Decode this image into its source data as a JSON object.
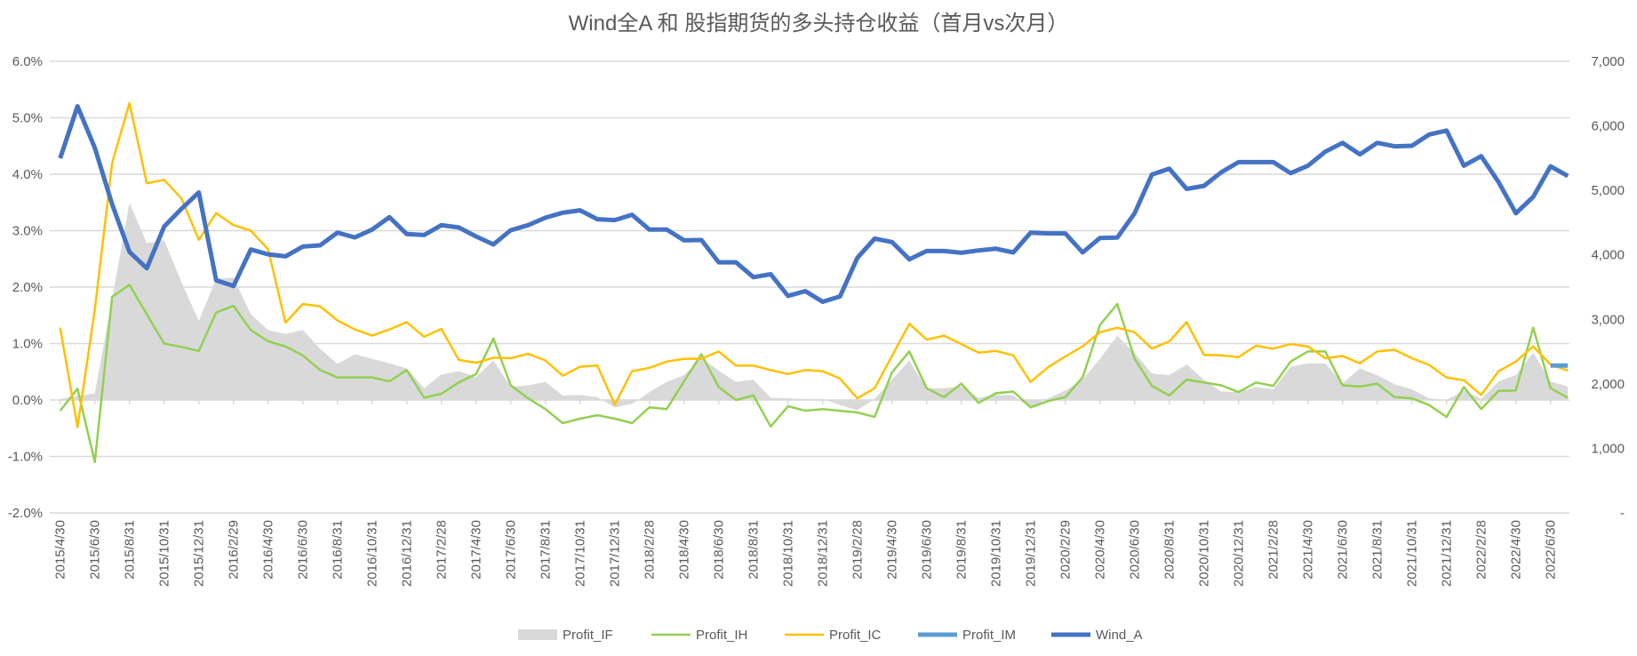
{
  "chart_data": {
    "type": "line",
    "title": "Wind全A 和 股指期货的多头持仓收益（首月vs次月）",
    "x_tick_labels": [
      "2015/4/30",
      "2015/6/30",
      "2015/8/31",
      "2015/10/31",
      "2015/12/31",
      "2016/2/29",
      "2016/4/30",
      "2016/6/30",
      "2016/8/31",
      "2016/10/31",
      "2016/12/31",
      "2017/2/28",
      "2017/4/30",
      "2017/6/30",
      "2017/8/31",
      "2017/10/31",
      "2017/12/31",
      "2018/2/28",
      "2018/4/30",
      "2018/6/30",
      "2018/8/31",
      "2018/10/31",
      "2018/12/31",
      "2019/2/28",
      "2019/4/30",
      "2019/6/30",
      "2019/8/31",
      "2019/10/31",
      "2019/12/31",
      "2020/2/29",
      "2020/4/30",
      "2020/6/30",
      "2020/8/31",
      "2020/10/31",
      "2020/12/31",
      "2021/2/28",
      "2021/4/30",
      "2021/6/30",
      "2021/8/31",
      "2021/10/31",
      "2021/12/31",
      "2022/2/28",
      "2022/4/30",
      "2022/6/30"
    ],
    "x_note": "monthly points from 2015/4/30 to 2022/7/31; tick labels every 2 months",
    "left_axis": {
      "unit": "percent",
      "ylim": [
        -2,
        6
      ],
      "tick_labels": [
        "-2.0%",
        "-1.0%",
        "0.0%",
        "1.0%",
        "2.0%",
        "3.0%",
        "4.0%",
        "5.0%",
        "6.0%"
      ]
    },
    "right_axis": {
      "ylim": [
        0,
        7000
      ],
      "tick_labels": [
        "-",
        "1,000",
        "2,000",
        "3,000",
        "4,000",
        "5,000",
        "6,000",
        "7,000"
      ]
    },
    "grid": true,
    "legend_position": "bottom",
    "series": [
      {
        "name": "Profit_IF",
        "kind": "area",
        "axis": "left",
        "color": "#D9D9D9",
        "values": [
          0.02,
          0.07,
          0.12,
          1.8,
          3.49,
          2.78,
          2.83,
          2.09,
          1.4,
          2.15,
          2.17,
          1.52,
          1.24,
          1.17,
          1.24,
          0.91,
          0.64,
          0.81,
          0.73,
          0.65,
          0.56,
          0.21,
          0.45,
          0.51,
          0.41,
          0.7,
          0.23,
          0.26,
          0.32,
          0.08,
          0.09,
          0.05,
          -0.13,
          -0.07,
          0.14,
          0.32,
          0.44,
          0.75,
          0.52,
          0.32,
          0.36,
          0.04,
          0.03,
          0.02,
          0.02,
          -0.09,
          -0.18,
          0.02,
          0.36,
          0.7,
          0.2,
          0.21,
          0.24,
          0.04,
          0.09,
          0.08,
          -0.15,
          0.03,
          0.17,
          0.36,
          0.73,
          1.14,
          0.83,
          0.47,
          0.44,
          0.63,
          0.36,
          0.15,
          0.14,
          0.23,
          0.19,
          0.59,
          0.65,
          0.65,
          0.3,
          0.56,
          0.44,
          0.28,
          0.19,
          0.03,
          0.0,
          0.17,
          0.02,
          0.33,
          0.44,
          0.84,
          0.33,
          0.24
        ]
      },
      {
        "name": "Profit_IH",
        "kind": "line",
        "axis": "left",
        "color": "#92D050",
        "values": [
          -0.19,
          0.2,
          -1.1,
          1.83,
          2.04,
          1.52,
          1.0,
          0.94,
          0.87,
          1.55,
          1.67,
          1.24,
          1.04,
          0.95,
          0.79,
          0.53,
          0.4,
          0.4,
          0.4,
          0.33,
          0.53,
          0.04,
          0.11,
          0.31,
          0.46,
          1.09,
          0.26,
          0.03,
          -0.16,
          -0.41,
          -0.33,
          -0.27,
          -0.33,
          -0.41,
          -0.13,
          -0.16,
          0.33,
          0.81,
          0.23,
          0.0,
          0.08,
          -0.47,
          -0.11,
          -0.19,
          -0.16,
          -0.19,
          -0.22,
          -0.3,
          0.49,
          0.86,
          0.21,
          0.05,
          0.29,
          -0.05,
          0.12,
          0.15,
          -0.13,
          -0.02,
          0.05,
          0.4,
          1.33,
          1.7,
          0.73,
          0.25,
          0.08,
          0.36,
          0.31,
          0.26,
          0.14,
          0.31,
          0.25,
          0.68,
          0.86,
          0.86,
          0.26,
          0.24,
          0.29,
          0.05,
          0.03,
          -0.09,
          -0.3,
          0.23,
          -0.16,
          0.16,
          0.17,
          1.28,
          0.21,
          0.04
        ]
      },
      {
        "name": "Profit_IC",
        "kind": "line",
        "axis": "left",
        "color": "#FFC000",
        "values": [
          1.28,
          -0.48,
          1.6,
          4.2,
          5.26,
          3.84,
          3.9,
          3.57,
          2.84,
          3.31,
          3.1,
          3.0,
          2.67,
          1.37,
          1.7,
          1.66,
          1.41,
          1.25,
          1.14,
          1.25,
          1.38,
          1.12,
          1.26,
          0.71,
          0.66,
          0.75,
          0.74,
          0.82,
          0.7,
          0.43,
          0.59,
          0.61,
          -0.08,
          0.51,
          0.57,
          0.68,
          0.73,
          0.73,
          0.86,
          0.61,
          0.61,
          0.53,
          0.46,
          0.53,
          0.51,
          0.38,
          0.03,
          0.21,
          0.78,
          1.35,
          1.07,
          1.14,
          0.99,
          0.84,
          0.87,
          0.79,
          0.32,
          0.58,
          0.77,
          0.95,
          1.2,
          1.28,
          1.2,
          0.91,
          1.04,
          1.38,
          0.8,
          0.79,
          0.76,
          0.96,
          0.91,
          0.99,
          0.95,
          0.74,
          0.78,
          0.65,
          0.86,
          0.89,
          0.74,
          0.62,
          0.4,
          0.35,
          0.09,
          0.51,
          0.68,
          0.95,
          0.63,
          0.52
        ]
      },
      {
        "name": "Profit_IM",
        "kind": "line",
        "axis": "left",
        "color": "#5B9BD5",
        "values": [
          null,
          null,
          null,
          null,
          null,
          null,
          null,
          null,
          null,
          null,
          null,
          null,
          null,
          null,
          null,
          null,
          null,
          null,
          null,
          null,
          null,
          null,
          null,
          null,
          null,
          null,
          null,
          null,
          null,
          null,
          null,
          null,
          null,
          null,
          null,
          null,
          null,
          null,
          null,
          null,
          null,
          null,
          null,
          null,
          null,
          null,
          null,
          null,
          null,
          null,
          null,
          null,
          null,
          null,
          null,
          null,
          null,
          null,
          null,
          null,
          null,
          null,
          null,
          null,
          null,
          null,
          null,
          null,
          null,
          null,
          null,
          null,
          null,
          null,
          null,
          null,
          null,
          null,
          null,
          null,
          null,
          null,
          null,
          null,
          null,
          null,
          0.61,
          0.61
        ]
      },
      {
        "name": "Wind_A",
        "kind": "line",
        "axis": "right",
        "color": "#4472C4",
        "values": [
          5497,
          6304,
          5659,
          4783,
          4046,
          3792,
          4438,
          4714,
          4967,
          3608,
          3516,
          4083,
          4009,
          3977,
          4129,
          4147,
          4345,
          4270,
          4391,
          4585,
          4322,
          4308,
          4461,
          4424,
          4285,
          4161,
          4382,
          4461,
          4576,
          4654,
          4691,
          4553,
          4539,
          4622,
          4391,
          4391,
          4225,
          4230,
          3885,
          3885,
          3654,
          3700,
          3364,
          3438,
          3272,
          3355,
          3954,
          4253,
          4198,
          3931,
          4060,
          4060,
          4032,
          4069,
          4095,
          4037,
          4345,
          4332,
          4332,
          4037,
          4262,
          4267,
          4645,
          5244,
          5336,
          5023,
          5069,
          5281,
          5437,
          5437,
          5437,
          5267,
          5382,
          5599,
          5737,
          5557,
          5737,
          5682,
          5691,
          5866,
          5926,
          5382,
          5530,
          5129,
          4645,
          4898,
          5373,
          5221
        ]
      }
    ]
  }
}
